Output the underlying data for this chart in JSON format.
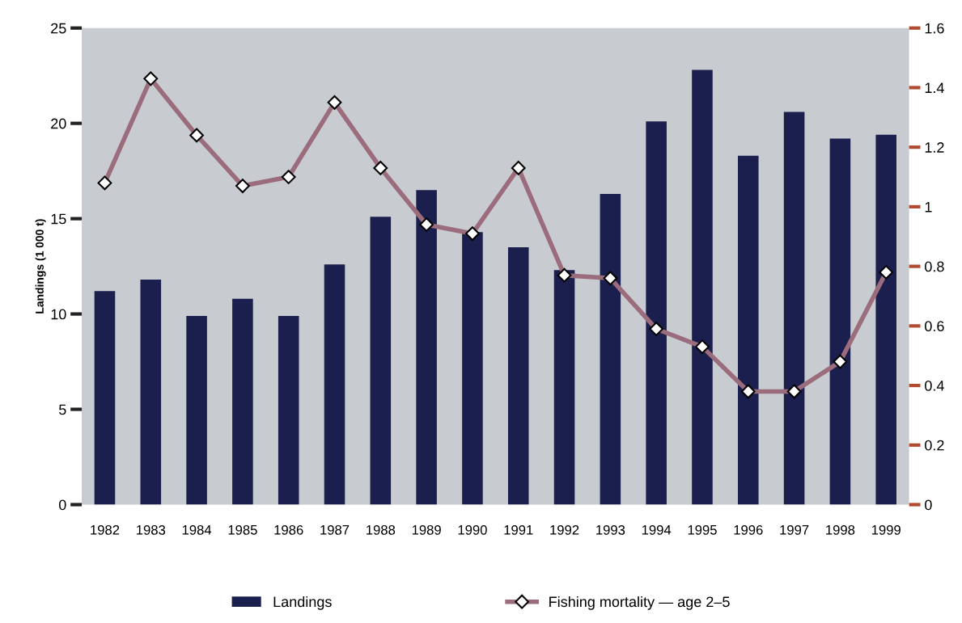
{
  "chart_data": {
    "type": "bar",
    "ylabel": "Landings (1 000 t)",
    "categories": [
      "1982",
      "1983",
      "1984",
      "1985",
      "1986",
      "1987",
      "1988",
      "1989",
      "1990",
      "1991",
      "1992",
      "1993",
      "1994",
      "1995",
      "1996",
      "1997",
      "1998",
      "1999"
    ],
    "series": [
      {
        "name": "Landings",
        "color": "#1a1f4e",
        "values": [
          11.2,
          11.8,
          9.9,
          10.8,
          9.9,
          12.6,
          15.1,
          16.5,
          14.3,
          13.5,
          12.3,
          16.3,
          20.1,
          22.8,
          18.3,
          20.6,
          19.2,
          19.4
        ]
      },
      {
        "name": "Fishing mortality — age 2–5",
        "type": "line",
        "axis": "y2",
        "color": "#9a6c7c",
        "marker": "diamond",
        "values": [
          1.08,
          1.43,
          1.24,
          1.07,
          1.1,
          1.35,
          1.13,
          0.94,
          0.91,
          1.13,
          0.77,
          0.76,
          0.59,
          0.53,
          0.38,
          0.38,
          0.48,
          0.78
        ]
      }
    ],
    "ylim": [
      0,
      25
    ],
    "yticks": [
      0,
      5,
      10,
      15,
      20,
      25
    ],
    "y2lim": [
      0,
      1.6
    ],
    "y2ticks": [
      0,
      0.2,
      0.4,
      0.6,
      0.8,
      1,
      1.2,
      1.4,
      1.6
    ],
    "grid": false,
    "legend": "bottom"
  }
}
